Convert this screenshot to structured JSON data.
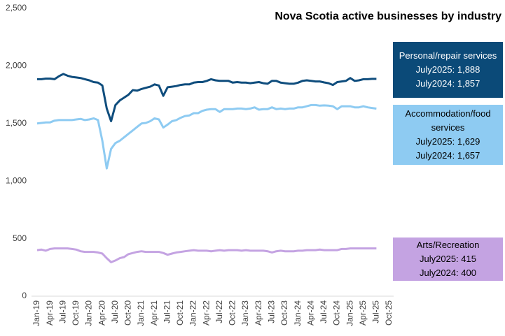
{
  "chart_data": {
    "type": "line",
    "title": "Nova Scotia active businesses by industry",
    "categories": [
      "Jan-19",
      null,
      null,
      "Apr-19",
      null,
      null,
      "Jul-19",
      null,
      null,
      "Oct-19",
      null,
      null,
      "Jan-20",
      null,
      null,
      "Apr-20",
      null,
      null,
      "Jul-20",
      null,
      null,
      "Oct-20",
      null,
      null,
      "Jan-21",
      null,
      null,
      "Apr-21",
      null,
      null,
      "Jul-21",
      null,
      null,
      "Oct-21",
      null,
      null,
      "Jan-22",
      null,
      null,
      "Apr-22",
      null,
      null,
      "Jul-22",
      null,
      null,
      "Oct-22",
      null,
      null,
      "Jan-23",
      null,
      null,
      "Apr-23",
      null,
      null,
      "Jul-23",
      null,
      null,
      "Oct-23",
      null,
      null,
      "Jan-24",
      null,
      null,
      "Apr-24",
      null,
      null,
      "Jul-24",
      null,
      null,
      "Oct-24",
      null,
      null,
      "Jan-25",
      null,
      null,
      "Apr-25",
      null,
      null,
      "Jul-25",
      null,
      null,
      "Oct-25"
    ],
    "ylim": [
      0,
      2500
    ],
    "yticks": [
      0,
      500,
      {
        "value": 1000,
        "label": "1,000"
      },
      {
        "value": 1500,
        "label": "1,500"
      },
      {
        "value": 2000,
        "label": "2,000"
      },
      {
        "value": 2500,
        "label": "2,500"
      }
    ],
    "grid": false,
    "series": [
      {
        "name": "Personal/repair services",
        "color": "#0f4d7d",
        "annotations": [
          "July2025: 1,888",
          "July2024: 1,857"
        ],
        "values": [
          1885,
          1885,
          1890,
          1890,
          1885,
          1910,
          1930,
          1915,
          1905,
          1900,
          1895,
          1885,
          1875,
          1860,
          1855,
          1830,
          1630,
          1520,
          1660,
          1700,
          1725,
          1750,
          1790,
          1785,
          1800,
          1810,
          1820,
          1840,
          1830,
          1740,
          1815,
          1820,
          1825,
          1835,
          1840,
          1840,
          1855,
          1860,
          1860,
          1870,
          1885,
          1875,
          1870,
          1870,
          1870,
          1855,
          1860,
          1855,
          1855,
          1850,
          1855,
          1860,
          1850,
          1845,
          1870,
          1870,
          1855,
          1850,
          1845,
          1845,
          1855,
          1870,
          1875,
          1870,
          1865,
          1865,
          1857,
          1850,
          1835,
          1860,
          1865,
          1870,
          1895,
          1870,
          1875,
          1885,
          1885,
          1888,
          1888,
          null,
          null,
          null
        ]
      },
      {
        "name": "Accommodation/food services",
        "color": "#8ecbf2",
        "annotations": [
          "July2025: 1,629",
          "July2024: 1,657"
        ],
        "values": [
          1500,
          1505,
          1510,
          1510,
          1525,
          1530,
          1530,
          1530,
          1530,
          1535,
          1540,
          1530,
          1535,
          1545,
          1530,
          1350,
          1110,
          1280,
          1330,
          1350,
          1380,
          1410,
          1440,
          1470,
          1500,
          1505,
          1520,
          1545,
          1535,
          1465,
          1490,
          1520,
          1530,
          1550,
          1565,
          1570,
          1590,
          1590,
          1610,
          1620,
          1625,
          1625,
          1600,
          1625,
          1625,
          1625,
          1630,
          1630,
          1625,
          1630,
          1640,
          1620,
          1625,
          1625,
          1640,
          1625,
          1630,
          1625,
          1630,
          1630,
          1640,
          1640,
          1650,
          1660,
          1660,
          1655,
          1657,
          1655,
          1650,
          1625,
          1650,
          1650,
          1650,
          1640,
          1640,
          1650,
          1640,
          1635,
          1629,
          null,
          null,
          null
        ]
      },
      {
        "name": "Arts/Recreation",
        "color": "#c4a3e2",
        "annotations": [
          "July2025: 415",
          "July2024: 400"
        ],
        "values": [
          400,
          405,
          395,
          410,
          415,
          415,
          415,
          415,
          410,
          405,
          390,
          385,
          385,
          385,
          380,
          370,
          330,
          295,
          310,
          330,
          340,
          365,
          375,
          385,
          390,
          385,
          385,
          385,
          385,
          375,
          360,
          370,
          380,
          385,
          390,
          395,
          400,
          395,
          395,
          395,
          390,
          395,
          400,
          395,
          400,
          400,
          400,
          395,
          400,
          395,
          395,
          395,
          395,
          390,
          380,
          390,
          395,
          390,
          390,
          390,
          395,
          395,
          400,
          400,
          400,
          405,
          400,
          400,
          400,
          400,
          410,
          410,
          415,
          415,
          415,
          415,
          415,
          415,
          415,
          null,
          null,
          null
        ]
      }
    ]
  }
}
